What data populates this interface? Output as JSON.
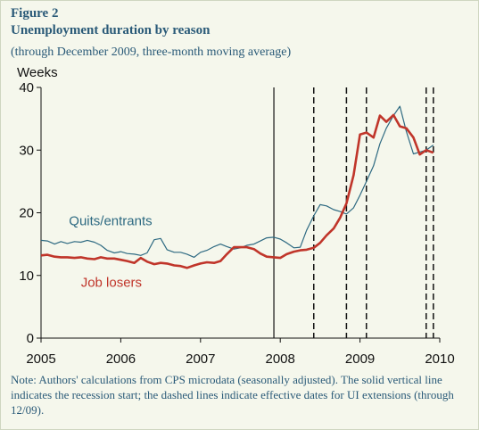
{
  "figure": {
    "label": "Figure 2",
    "title": "Unemployment duration by reason",
    "subtitle": "(through December 2009, three-month moving average)",
    "note": "Note: Authors' calculations from CPS microdata (seasonally adjusted). The solid vertical line indicates the recession start; the dashed lines indicate effective dates for UI extensions (through 12/09)."
  },
  "chart_data": {
    "type": "line",
    "title": "Unemployment duration by reason",
    "subtitle": "(through December 2009, three-month moving average)",
    "xlabel": "",
    "ylabel": "Weeks",
    "xlim": [
      2005,
      2010
    ],
    "ylim": [
      0,
      40
    ],
    "x_ticks": [
      "2005",
      "2006",
      "2007",
      "2008",
      "2009",
      "2010"
    ],
    "y_ticks": [
      "0",
      "10",
      "20",
      "30",
      "40"
    ],
    "grid": false,
    "legend": "inline labels",
    "series": [
      {
        "name": "Quits/entrants",
        "color": "#2e6a82",
        "x": [
          2005.0,
          2005.08,
          2005.17,
          2005.25,
          2005.33,
          2005.42,
          2005.5,
          2005.58,
          2005.67,
          2005.75,
          2005.83,
          2005.92,
          2006.0,
          2006.08,
          2006.17,
          2006.25,
          2006.33,
          2006.42,
          2006.5,
          2006.58,
          2006.67,
          2006.75,
          2006.83,
          2006.92,
          2007.0,
          2007.08,
          2007.17,
          2007.25,
          2007.33,
          2007.42,
          2007.5,
          2007.58,
          2007.67,
          2007.75,
          2007.83,
          2007.92,
          2008.0,
          2008.08,
          2008.17,
          2008.25,
          2008.33,
          2008.42,
          2008.5,
          2008.58,
          2008.67,
          2008.75,
          2008.83,
          2008.92,
          2009.0,
          2009.08,
          2009.17,
          2009.25,
          2009.33,
          2009.42,
          2009.5,
          2009.58,
          2009.67,
          2009.75,
          2009.83,
          2009.92
        ],
        "values": [
          15.6,
          15.5,
          15.0,
          15.4,
          15.1,
          15.4,
          15.3,
          15.6,
          15.3,
          14.8,
          14.0,
          13.6,
          13.8,
          13.5,
          13.4,
          13.2,
          13.6,
          15.7,
          15.9,
          14.1,
          13.7,
          13.7,
          13.4,
          12.9,
          13.7,
          14.0,
          14.6,
          15.0,
          14.6,
          14.2,
          14.4,
          14.8,
          15.0,
          15.5,
          16.0,
          16.1,
          15.8,
          15.2,
          14.4,
          14.5,
          17.2,
          19.5,
          21.3,
          21.1,
          20.5,
          20.2,
          19.8,
          20.8,
          22.8,
          25.0,
          27.5,
          31.0,
          33.5,
          35.5,
          37.0,
          33.0,
          29.4,
          29.7,
          30.0,
          30.8
        ]
      },
      {
        "name": "Job losers",
        "color": "#c0352a",
        "x": [
          2005.0,
          2005.08,
          2005.17,
          2005.25,
          2005.33,
          2005.42,
          2005.5,
          2005.58,
          2005.67,
          2005.75,
          2005.83,
          2005.92,
          2006.0,
          2006.08,
          2006.17,
          2006.25,
          2006.33,
          2006.42,
          2006.5,
          2006.58,
          2006.67,
          2006.75,
          2006.83,
          2006.92,
          2007.0,
          2007.08,
          2007.17,
          2007.25,
          2007.33,
          2007.42,
          2007.5,
          2007.58,
          2007.67,
          2007.75,
          2007.83,
          2007.92,
          2008.0,
          2008.08,
          2008.17,
          2008.25,
          2008.33,
          2008.42,
          2008.5,
          2008.58,
          2008.67,
          2008.75,
          2008.83,
          2008.92,
          2009.0,
          2009.08,
          2009.17,
          2009.25,
          2009.33,
          2009.42,
          2009.5,
          2009.58,
          2009.67,
          2009.75,
          2009.83,
          2009.92
        ],
        "values": [
          13.2,
          13.3,
          13.0,
          12.9,
          12.9,
          12.8,
          12.9,
          12.7,
          12.6,
          12.9,
          12.7,
          12.7,
          12.5,
          12.3,
          12.0,
          12.8,
          12.2,
          11.8,
          12.0,
          11.9,
          11.6,
          11.5,
          11.2,
          11.6,
          11.9,
          12.1,
          12.0,
          12.3,
          13.4,
          14.5,
          14.5,
          14.5,
          14.2,
          13.5,
          13.0,
          12.9,
          12.8,
          13.4,
          13.8,
          14.0,
          14.1,
          14.4,
          15.2,
          16.4,
          17.5,
          19.2,
          21.5,
          26.0,
          32.5,
          32.8,
          32.0,
          35.5,
          34.5,
          35.6,
          33.8,
          33.5,
          32.0,
          29.3,
          30.0,
          29.6
        ]
      }
    ],
    "series_labels": [
      {
        "text": "Quits/entrants",
        "color": "#2e6a82",
        "x": 2005.35,
        "y": 18.0
      },
      {
        "text": "Job losers",
        "color": "#c0352a",
        "x": 2005.5,
        "y": 8.2
      }
    ],
    "recession_start": 2007.92,
    "ui_extension_dates": [
      2008.42,
      2008.83,
      2009.08,
      2009.83,
      2009.92
    ]
  }
}
